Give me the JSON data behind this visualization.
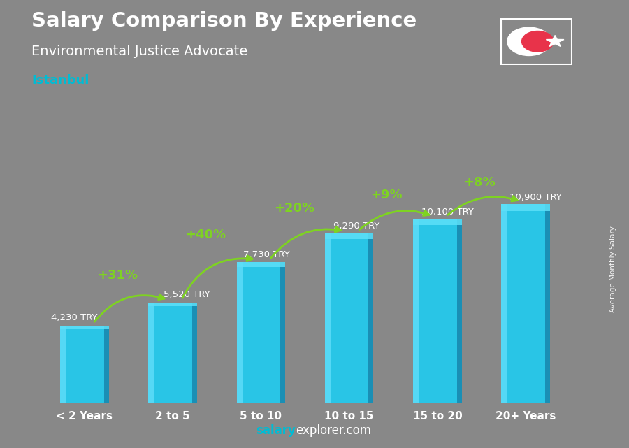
{
  "title_line1": "Salary Comparison By Experience",
  "title_line2": "Environmental Justice Advocate",
  "city": "Istanbul",
  "categories": [
    "< 2 Years",
    "2 to 5",
    "5 to 10",
    "10 to 15",
    "15 to 20",
    "20+ Years"
  ],
  "values": [
    4230,
    5520,
    7730,
    9290,
    10100,
    10900
  ],
  "value_labels": [
    "4,230 TRY",
    "5,520 TRY",
    "7,730 TRY",
    "9,290 TRY",
    "10,100 TRY",
    "10,900 TRY"
  ],
  "pct_labels": [
    null,
    "+31%",
    "+40%",
    "+20%",
    "+9%",
    "+8%"
  ],
  "bar_color_main": "#29c5e6",
  "bar_color_left": "#55d8f5",
  "bar_color_right": "#1a8fb5",
  "bar_color_top": "#5de0f8",
  "bg_color": "#888888",
  "title_color": "#ffffff",
  "subtitle_color": "#ffffff",
  "city_color": "#00bcd4",
  "pct_color": "#7ed321",
  "value_color": "#ffffff",
  "ylabel": "Average Monthly Salary",
  "footer_salary": "salary",
  "footer_explorer": "explorer",
  "footer_com": ".com",
  "footer_color_cyan": "#00bcd4",
  "footer_color_white": "#ffffff",
  "flag_red": "#e8334a",
  "ylim": [
    0,
    13500
  ],
  "bar_width": 0.55,
  "n_bars": 6
}
